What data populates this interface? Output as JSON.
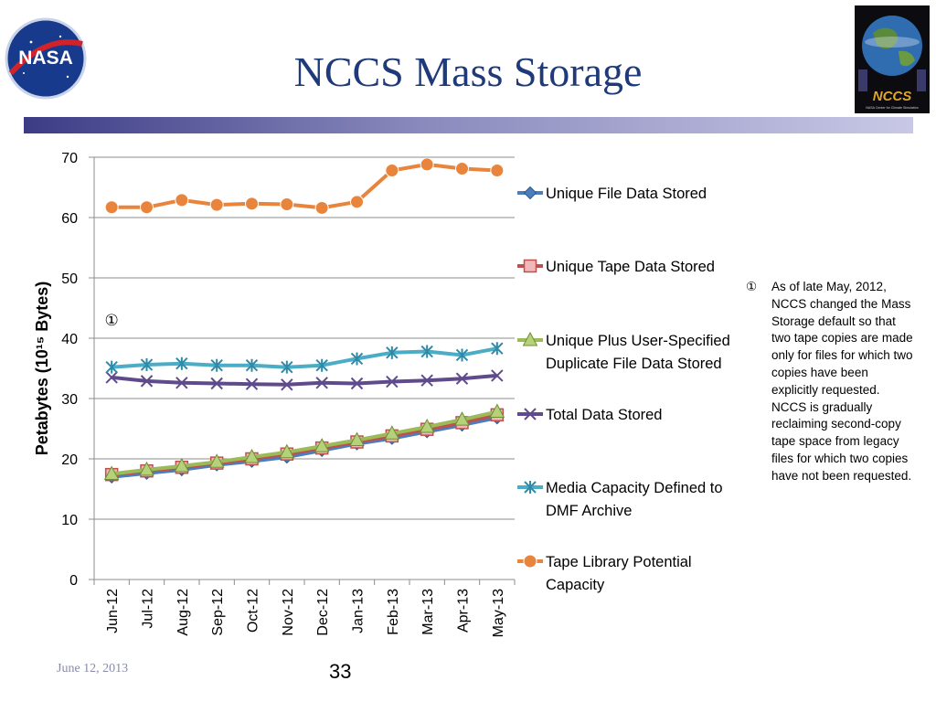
{
  "slide": {
    "title": "NCCS Mass Storage",
    "footer_date": "June 12, 2013",
    "page_number": "33",
    "logo_left_text": "NASA",
    "logo_right_text": "NCCS",
    "logo_right_caption": "NASA Center for Climate Simulation",
    "colors": {
      "title": "#1f3a7a",
      "bar_start": "#3c3c86",
      "bar_end": "#c8c8e6"
    }
  },
  "note": {
    "marker": "①",
    "text": "As of late May, 2012, NCCS changed the Mass Storage default so that two tape copies are made only for files for which two copies have been explicitly requested. NCCS is gradually reclaiming second-copy tape space from legacy files for which two copies have not been requested."
  },
  "chart_data": {
    "type": "line",
    "title": "",
    "xlabel": "",
    "ylabel": "Petabytes (10¹⁵ Bytes)",
    "ylim": [
      0,
      70
    ],
    "yticks": [
      0,
      10,
      20,
      30,
      40,
      50,
      60,
      70
    ],
    "grid": true,
    "legend_position": "right",
    "annotation": {
      "text": "①",
      "x": "Jun-12",
      "y": 43
    },
    "categories": [
      "Jun-12",
      "Jul-12",
      "Aug-12",
      "Sep-12",
      "Oct-12",
      "Nov-12",
      "Dec-12",
      "Jan-13",
      "Feb-13",
      "Mar-13",
      "Apr-13",
      "May-13"
    ],
    "series": [
      {
        "name": "Unique File Data Stored",
        "color": "#4a7ebf",
        "marker": "diamond",
        "values": [
          17.0,
          17.6,
          18.2,
          19.0,
          19.6,
          20.3,
          21.4,
          22.5,
          23.4,
          24.5,
          25.6,
          26.8
        ]
      },
      {
        "name": "Unique Tape Data Stored",
        "color": "#c0504d",
        "marker": "square",
        "values": [
          17.4,
          18.0,
          18.6,
          19.3,
          20.0,
          20.8,
          21.8,
          22.8,
          23.8,
          24.9,
          26.0,
          27.3
        ]
      },
      {
        "name": "Unique Plus User-Specified Duplicate File Data Stored",
        "color": "#9bbb59",
        "marker": "triangle",
        "values": [
          17.5,
          18.2,
          18.8,
          19.5,
          20.3,
          21.1,
          22.1,
          23.1,
          24.2,
          25.3,
          26.5,
          27.8
        ]
      },
      {
        "name": "Total Data Stored",
        "color": "#5f4b8b",
        "marker": "x",
        "values": [
          33.5,
          32.9,
          32.6,
          32.5,
          32.4,
          32.3,
          32.6,
          32.5,
          32.8,
          33.0,
          33.3,
          33.8
        ]
      },
      {
        "name": "Media Capacity Defined to DMF Archive",
        "color": "#4bacc6",
        "marker": "star",
        "values": [
          35.2,
          35.6,
          35.8,
          35.5,
          35.5,
          35.2,
          35.5,
          36.6,
          37.6,
          37.8,
          37.2,
          38.3
        ]
      },
      {
        "name": "Tape Library Potential Capacity",
        "color": "#e8843c",
        "marker": "circle",
        "values": [
          61.7,
          61.7,
          62.9,
          62.1,
          62.3,
          62.2,
          61.6,
          62.6,
          67.8,
          68.8,
          68.1,
          67.8
        ]
      }
    ]
  }
}
